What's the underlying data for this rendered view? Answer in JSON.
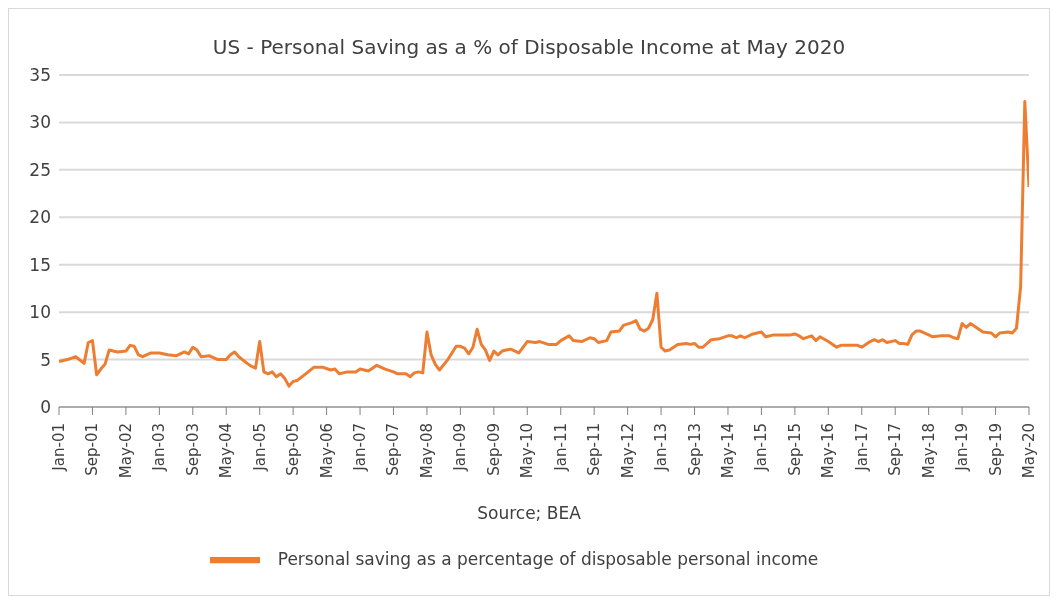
{
  "chart_data": {
    "type": "line",
    "title": "US - Personal Saving as a % of Disposable Income at May 2020",
    "annotations": [
      "Source; BEA"
    ],
    "x": [
      "2001-01",
      "2001-03",
      "2001-05",
      "2001-07",
      "2001-08",
      "2001-09",
      "2001-10",
      "2001-11",
      "2001-12",
      "2002-01",
      "2002-03",
      "2002-05",
      "2002-06",
      "2002-07",
      "2002-08",
      "2002-09",
      "2002-11",
      "2003-01",
      "2003-03",
      "2003-05",
      "2003-07",
      "2003-08",
      "2003-09",
      "2003-10",
      "2003-11",
      "2004-01",
      "2004-03",
      "2004-05",
      "2004-06",
      "2004-07",
      "2004-08",
      "2004-10",
      "2004-11",
      "2004-12",
      "2005-01",
      "2005-02",
      "2005-03",
      "2005-04",
      "2005-05",
      "2005-06",
      "2005-07",
      "2005-08",
      "2005-09",
      "2005-10",
      "2005-12",
      "2006-02",
      "2006-04",
      "2006-06",
      "2006-07",
      "2006-08",
      "2006-10",
      "2006-12",
      "2007-01",
      "2007-03",
      "2007-05",
      "2007-07",
      "2007-09",
      "2007-10",
      "2007-12",
      "2008-01",
      "2008-02",
      "2008-03",
      "2008-04",
      "2008-05",
      "2008-06",
      "2008-07",
      "2008-08",
      "2008-10",
      "2008-12",
      "2009-01",
      "2009-02",
      "2009-03",
      "2009-04",
      "2009-05",
      "2009-06",
      "2009-07",
      "2009-08",
      "2009-09",
      "2009-10",
      "2009-11",
      "2009-12",
      "2010-01",
      "2010-03",
      "2010-05",
      "2010-07",
      "2010-08",
      "2010-10",
      "2010-12",
      "2011-01",
      "2011-03",
      "2011-04",
      "2011-06",
      "2011-08",
      "2011-09",
      "2011-10",
      "2011-12",
      "2012-01",
      "2012-03",
      "2012-04",
      "2012-06",
      "2012-07",
      "2012-08",
      "2012-09",
      "2012-10",
      "2012-11",
      "2012-12",
      "2013-01",
      "2013-02",
      "2013-03",
      "2013-05",
      "2013-07",
      "2013-08",
      "2013-09",
      "2013-10",
      "2013-11",
      "2014-01",
      "2014-03",
      "2014-05",
      "2014-06",
      "2014-07",
      "2014-08",
      "2014-09",
      "2014-11",
      "2015-01",
      "2015-02",
      "2015-04",
      "2015-06",
      "2015-08",
      "2015-09",
      "2015-10",
      "2015-11",
      "2016-01",
      "2016-02",
      "2016-03",
      "2016-05",
      "2016-07",
      "2016-08",
      "2016-10",
      "2016-12",
      "2017-01",
      "2017-03",
      "2017-04",
      "2017-05",
      "2017-06",
      "2017-07",
      "2017-09",
      "2017-10",
      "2017-11",
      "2017-12",
      "2018-01",
      "2018-02",
      "2018-03",
      "2018-05",
      "2018-06",
      "2018-08",
      "2018-10",
      "2018-11",
      "2018-12",
      "2019-01",
      "2019-02",
      "2019-03",
      "2019-05",
      "2019-06",
      "2019-08",
      "2019-09",
      "2019-10",
      "2019-12",
      "2020-01",
      "2020-02",
      "2020-03",
      "2020-04",
      "2020-05"
    ],
    "series": [
      {
        "name": "Personal saving as a percentage of disposable personal income",
        "color": "#ed7d31",
        "values": [
          4.8,
          5.0,
          5.3,
          4.6,
          6.8,
          7.0,
          3.4,
          4.0,
          4.5,
          6.0,
          5.8,
          5.9,
          6.5,
          6.4,
          5.5,
          5.3,
          5.7,
          5.7,
          5.5,
          5.4,
          5.8,
          5.6,
          6.3,
          6.0,
          5.3,
          5.4,
          5.0,
          5.0,
          5.5,
          5.8,
          5.3,
          4.6,
          4.3,
          4.1,
          6.9,
          3.7,
          3.5,
          3.7,
          3.2,
          3.5,
          3.0,
          2.2,
          2.7,
          2.8,
          3.5,
          4.2,
          4.2,
          3.9,
          4.0,
          3.5,
          3.7,
          3.7,
          4.0,
          3.8,
          4.4,
          4.0,
          3.7,
          3.5,
          3.5,
          3.2,
          3.6,
          3.7,
          3.6,
          7.9,
          5.5,
          4.5,
          3.9,
          5.0,
          6.4,
          6.4,
          6.2,
          5.6,
          6.3,
          8.2,
          6.6,
          6.0,
          4.9,
          5.9,
          5.5,
          5.9,
          6.0,
          6.1,
          5.7,
          6.9,
          6.8,
          6.9,
          6.6,
          6.6,
          7.0,
          7.5,
          7.0,
          6.9,
          7.3,
          7.2,
          6.8,
          7.0,
          7.9,
          8.0,
          8.6,
          8.9,
          9.1,
          8.2,
          8.0,
          8.3,
          9.2,
          12.0,
          6.3,
          5.9,
          6.0,
          6.6,
          6.7,
          6.6,
          6.7,
          6.3,
          6.3,
          7.1,
          7.2,
          7.5,
          7.5,
          7.3,
          7.5,
          7.3,
          7.7,
          7.9,
          7.4,
          7.6,
          7.6,
          7.6,
          7.7,
          7.5,
          7.2,
          7.5,
          7.0,
          7.4,
          6.9,
          6.3,
          6.5,
          6.5,
          6.5,
          6.3,
          6.9,
          7.1,
          6.9,
          7.1,
          6.8,
          7.0,
          6.7,
          6.7,
          6.6,
          7.6,
          8.0,
          8.0,
          7.6,
          7.4,
          7.5,
          7.5,
          7.3,
          7.2,
          8.8,
          8.4,
          8.8,
          8.2,
          7.9,
          7.8,
          7.4,
          7.8,
          7.9,
          7.8,
          8.3,
          12.7,
          32.2,
          23.2
        ]
      }
    ],
    "xlim": [
      "2001-01",
      "2020-05"
    ],
    "xticks": [
      {
        "value": "2001-01",
        "label": "Jan-01"
      },
      {
        "value": "2001-09",
        "label": "Sep-01"
      },
      {
        "value": "2002-05",
        "label": "May-02"
      },
      {
        "value": "2003-01",
        "label": "Jan-03"
      },
      {
        "value": "2003-09",
        "label": "Sep-03"
      },
      {
        "value": "2004-05",
        "label": "May-04"
      },
      {
        "value": "2005-01",
        "label": "Jan-05"
      },
      {
        "value": "2005-09",
        "label": "Sep-05"
      },
      {
        "value": "2006-05",
        "label": "May-06"
      },
      {
        "value": "2007-01",
        "label": "Jan-07"
      },
      {
        "value": "2007-09",
        "label": "Sep-07"
      },
      {
        "value": "2008-05",
        "label": "May-08"
      },
      {
        "value": "2009-01",
        "label": "Jan-09"
      },
      {
        "value": "2009-09",
        "label": "Sep-09"
      },
      {
        "value": "2010-05",
        "label": "May-10"
      },
      {
        "value": "2011-01",
        "label": "Jan-11"
      },
      {
        "value": "2011-09",
        "label": "Sep-11"
      },
      {
        "value": "2012-05",
        "label": "May-12"
      },
      {
        "value": "2013-01",
        "label": "Jan-13"
      },
      {
        "value": "2013-09",
        "label": "Sep-13"
      },
      {
        "value": "2014-05",
        "label": "May-14"
      },
      {
        "value": "2015-01",
        "label": "Jan-15"
      },
      {
        "value": "2015-09",
        "label": "Sep-15"
      },
      {
        "value": "2016-05",
        "label": "May-16"
      },
      {
        "value": "2017-01",
        "label": "Jan-17"
      },
      {
        "value": "2017-09",
        "label": "Sep-17"
      },
      {
        "value": "2018-05",
        "label": "May-18"
      },
      {
        "value": "2019-01",
        "label": "Jan-19"
      },
      {
        "value": "2019-09",
        "label": "Sep-19"
      },
      {
        "value": "2020-05",
        "label": "May-20"
      }
    ],
    "ylim": [
      0,
      35
    ],
    "yticks": [
      0,
      5,
      10,
      15,
      20,
      25,
      30,
      35
    ],
    "grid": "y",
    "legend": "bottom",
    "marker": "none",
    "line_style": "solid"
  }
}
